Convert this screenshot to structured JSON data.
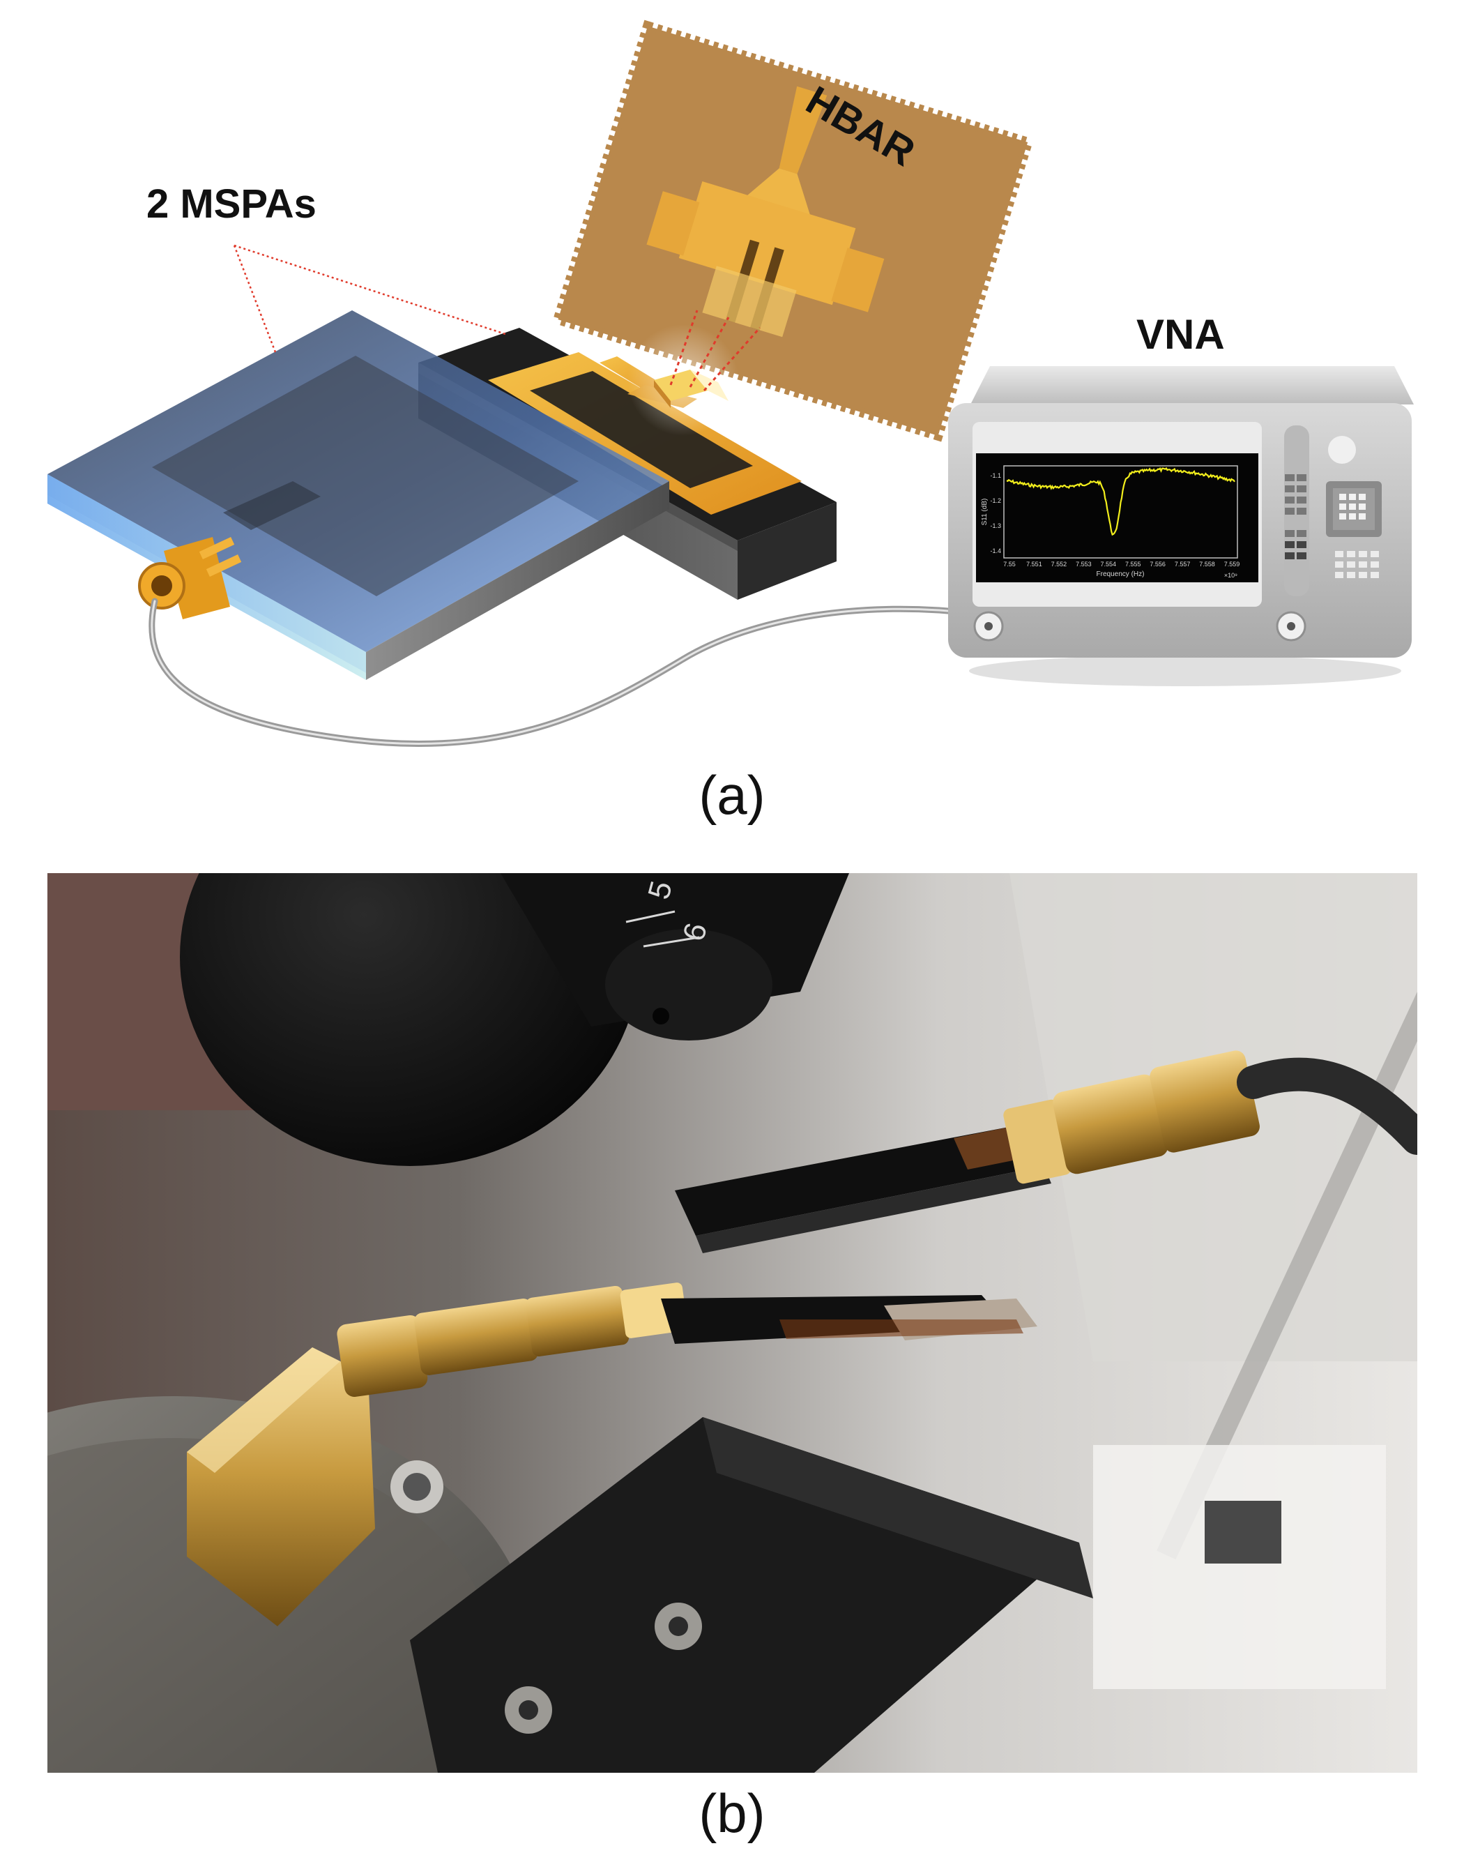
{
  "panel_a": {
    "caption": "(a)",
    "label_mspas": "2 MSPAs",
    "label_hbar": "HBAR",
    "label_vna": "VNA",
    "screen_plot": {
      "ylabel": "S11 (dB)",
      "xlabel": "Frequency (Hz)",
      "x_exponent": "×10⁹",
      "y_ticks": [
        "-1.1",
        "-1.2",
        "-1.3",
        "-1.4"
      ],
      "x_ticks": [
        "7.55",
        "7.551",
        "7.552",
        "7.553",
        "7.554",
        "7.555",
        "7.556",
        "7.557",
        "7.558",
        "7.559"
      ],
      "trace_color": "#f2ee1c"
    }
  },
  "panel_b": {
    "caption": "(b)",
    "lens_markings": [
      "5",
      "6"
    ]
  },
  "colors": {
    "gold": "#e9a52a",
    "hbar_bg": "#b8864b",
    "board_dark": "#2a2a2a",
    "substrate_blue": "#6fa7e0",
    "vna_body": "#c9c9c9"
  }
}
